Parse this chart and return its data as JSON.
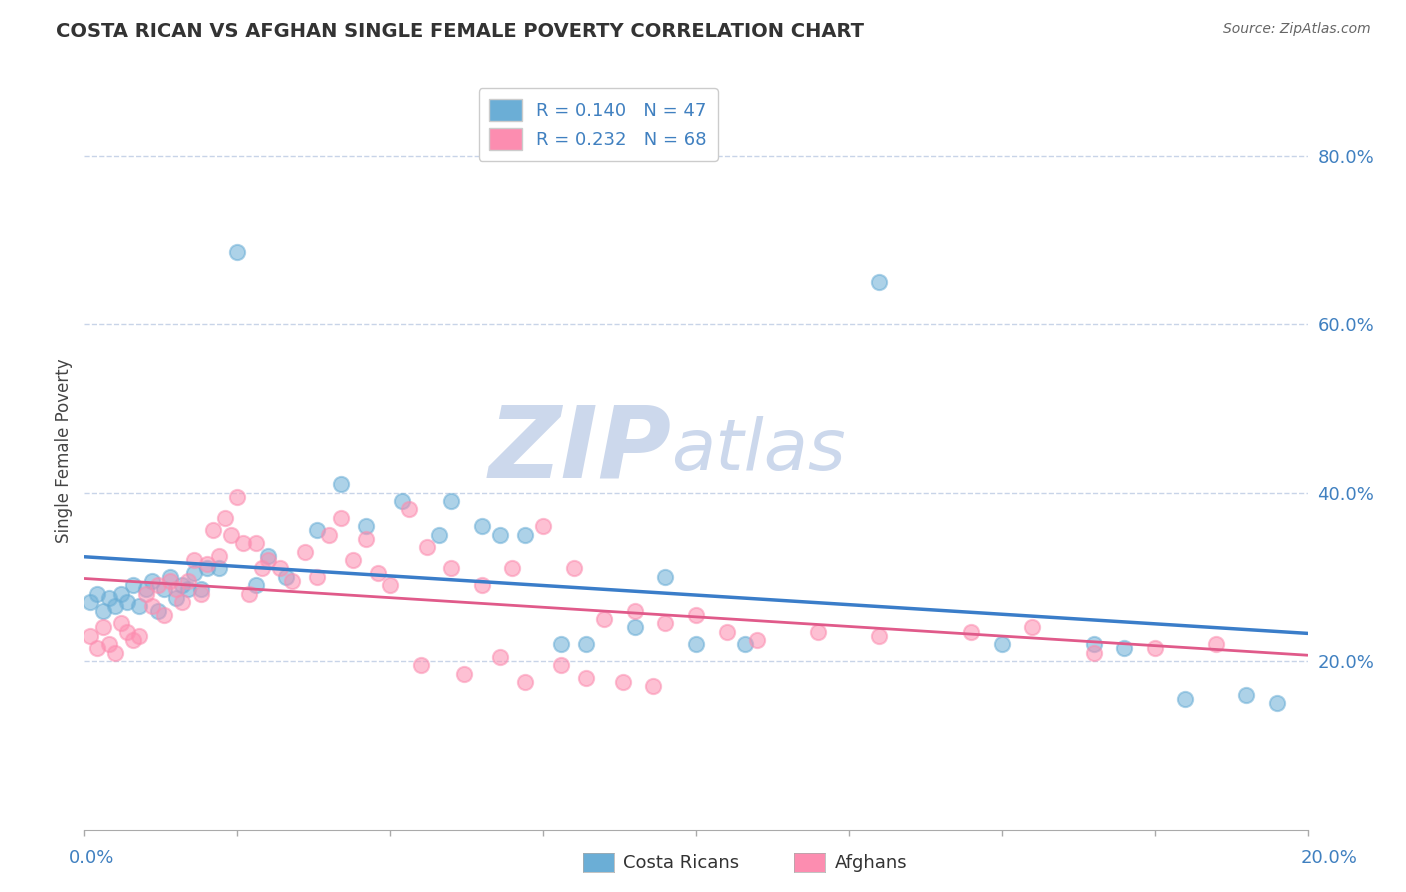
{
  "title": "COSTA RICAN VS AFGHAN SINGLE FEMALE POVERTY CORRELATION CHART",
  "source": "Source: ZipAtlas.com",
  "ylabel": "Single Female Poverty",
  "legend_label1": "Costa Ricans",
  "legend_label2": "Afghans",
  "r1": 0.14,
  "n1": 47,
  "r2": 0.232,
  "n2": 68,
  "color1": "#6baed6",
  "color2": "#fc8db0",
  "trendline1_color": "#3a7dc9",
  "trendline2_color": "#e05a8a",
  "watermark_zip": "ZIP",
  "watermark_atlas": "atlas",
  "watermark_color": "#ccd8ec",
  "xlim": [
    0.0,
    0.2
  ],
  "ylim": [
    0.0,
    0.9
  ],
  "yticks": [
    0.2,
    0.4,
    0.6,
    0.8
  ],
  "ytick_labels": [
    "20.0%",
    "40.0%",
    "60.0%",
    "80.0%"
  ],
  "background_color": "#ffffff",
  "grid_color": "#c8d4e8",
  "cr_x": [
    0.001,
    0.002,
    0.003,
    0.004,
    0.005,
    0.006,
    0.007,
    0.008,
    0.009,
    0.01,
    0.011,
    0.012,
    0.013,
    0.014,
    0.015,
    0.016,
    0.017,
    0.018,
    0.019,
    0.02,
    0.022,
    0.025,
    0.028,
    0.03,
    0.033,
    0.038,
    0.042,
    0.046,
    0.052,
    0.058,
    0.06,
    0.065,
    0.068,
    0.072,
    0.078,
    0.082,
    0.09,
    0.095,
    0.1,
    0.108,
    0.13,
    0.15,
    0.165,
    0.17,
    0.18,
    0.19,
    0.195
  ],
  "cr_y": [
    0.27,
    0.28,
    0.26,
    0.275,
    0.265,
    0.28,
    0.27,
    0.29,
    0.265,
    0.285,
    0.295,
    0.26,
    0.285,
    0.3,
    0.275,
    0.29,
    0.285,
    0.305,
    0.285,
    0.31,
    0.31,
    0.685,
    0.29,
    0.325,
    0.3,
    0.355,
    0.41,
    0.36,
    0.39,
    0.35,
    0.39,
    0.36,
    0.35,
    0.35,
    0.22,
    0.22,
    0.24,
    0.3,
    0.22,
    0.22,
    0.65,
    0.22,
    0.22,
    0.215,
    0.155,
    0.16,
    0.15
  ],
  "af_x": [
    0.001,
    0.002,
    0.003,
    0.004,
    0.005,
    0.006,
    0.007,
    0.008,
    0.009,
    0.01,
    0.011,
    0.012,
    0.013,
    0.014,
    0.015,
    0.016,
    0.017,
    0.018,
    0.019,
    0.02,
    0.021,
    0.022,
    0.023,
    0.024,
    0.025,
    0.026,
    0.027,
    0.028,
    0.029,
    0.03,
    0.032,
    0.034,
    0.036,
    0.038,
    0.04,
    0.042,
    0.044,
    0.046,
    0.048,
    0.05,
    0.053,
    0.056,
    0.06,
    0.065,
    0.07,
    0.075,
    0.08,
    0.085,
    0.09,
    0.095,
    0.1,
    0.105,
    0.11,
    0.12,
    0.13,
    0.145,
    0.155,
    0.165,
    0.175,
    0.185,
    0.055,
    0.062,
    0.068,
    0.072,
    0.078,
    0.082,
    0.088,
    0.093
  ],
  "af_y": [
    0.23,
    0.215,
    0.24,
    0.22,
    0.21,
    0.245,
    0.235,
    0.225,
    0.23,
    0.28,
    0.265,
    0.29,
    0.255,
    0.295,
    0.285,
    0.27,
    0.295,
    0.32,
    0.28,
    0.315,
    0.355,
    0.325,
    0.37,
    0.35,
    0.395,
    0.34,
    0.28,
    0.34,
    0.31,
    0.32,
    0.31,
    0.295,
    0.33,
    0.3,
    0.35,
    0.37,
    0.32,
    0.345,
    0.305,
    0.29,
    0.38,
    0.335,
    0.31,
    0.29,
    0.31,
    0.36,
    0.31,
    0.25,
    0.26,
    0.245,
    0.255,
    0.235,
    0.225,
    0.235,
    0.23,
    0.235,
    0.24,
    0.21,
    0.215,
    0.22,
    0.195,
    0.185,
    0.205,
    0.175,
    0.195,
    0.18,
    0.175,
    0.17
  ]
}
